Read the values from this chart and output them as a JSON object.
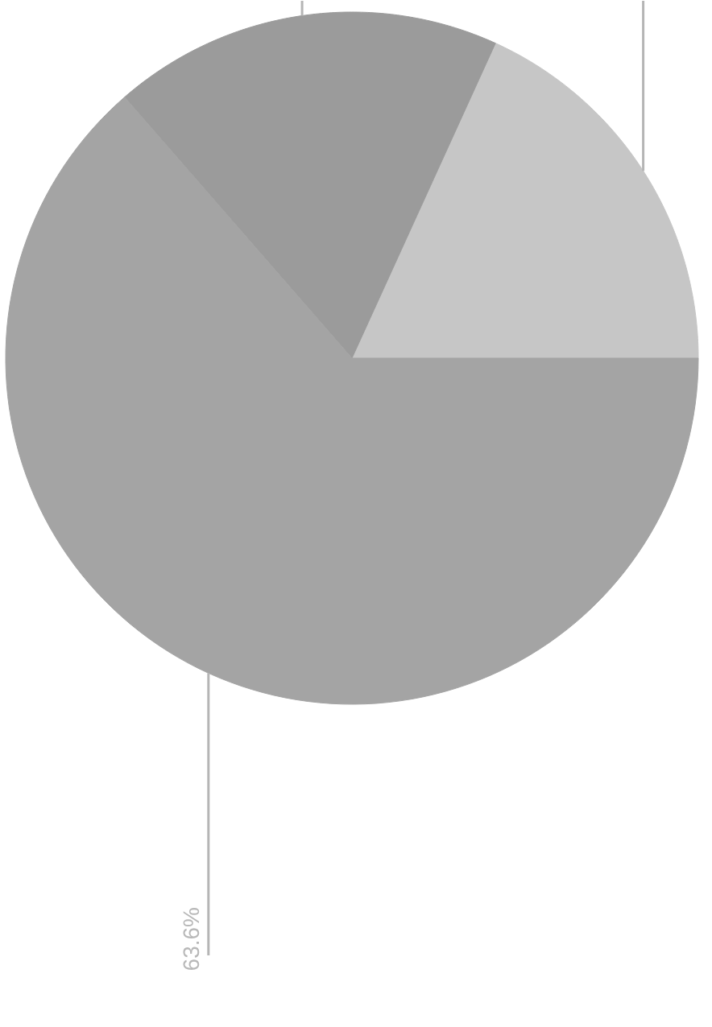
{
  "chart_data": {
    "type": "pie",
    "categories": [
      null,
      null,
      null
    ],
    "values": [
      18.2,
      18.2,
      63.6
    ],
    "colors": [
      "#c6c6c6",
      "#9b9b9b",
      "#a4a4a4"
    ],
    "value_labels": [
      null,
      null,
      "63.6%"
    ]
  }
}
